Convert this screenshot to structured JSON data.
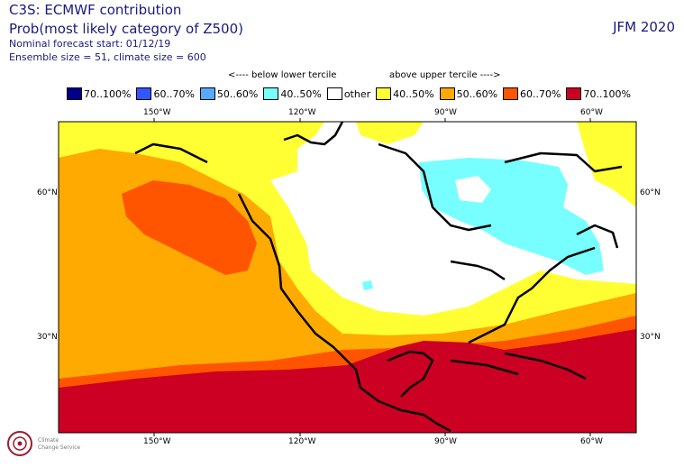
{
  "header": {
    "title": "C3S: ECMWF contribution",
    "subtitle": "Prob(most likely category of Z500)",
    "forecast_start": "Nominal forecast start: 01/12/19",
    "ensemble": "Ensemble size = 51, climate size = 600",
    "period": "JFM 2020"
  },
  "legend": {
    "below_label": "<---- below lower tercile",
    "above_label": "above upper tercile ---->",
    "items": [
      {
        "label": "70..100%",
        "color": "#00008b"
      },
      {
        "label": "60..70%",
        "color": "#3355ff"
      },
      {
        "label": "50..60%",
        "color": "#55aaff"
      },
      {
        "label": "40..50%",
        "color": "#77ffff"
      },
      {
        "label": "other",
        "color": "#ffffff"
      },
      {
        "label": "40..50%",
        "color": "#ffff33"
      },
      {
        "label": "50..60%",
        "color": "#ffaa00"
      },
      {
        "label": "60..70%",
        "color": "#ff5500"
      },
      {
        "label": "70..100%",
        "color": "#cc0022"
      }
    ]
  },
  "axes": {
    "top_lon": [
      "150°W",
      "120°W",
      "90°W",
      "60°W"
    ],
    "bottom_lon": [
      "150°W",
      "120°W",
      "90°W",
      "60°W"
    ],
    "lat": [
      "60°N",
      "30°N"
    ]
  },
  "logo": {
    "line1": "Climate",
    "line2": "Change Service"
  }
}
